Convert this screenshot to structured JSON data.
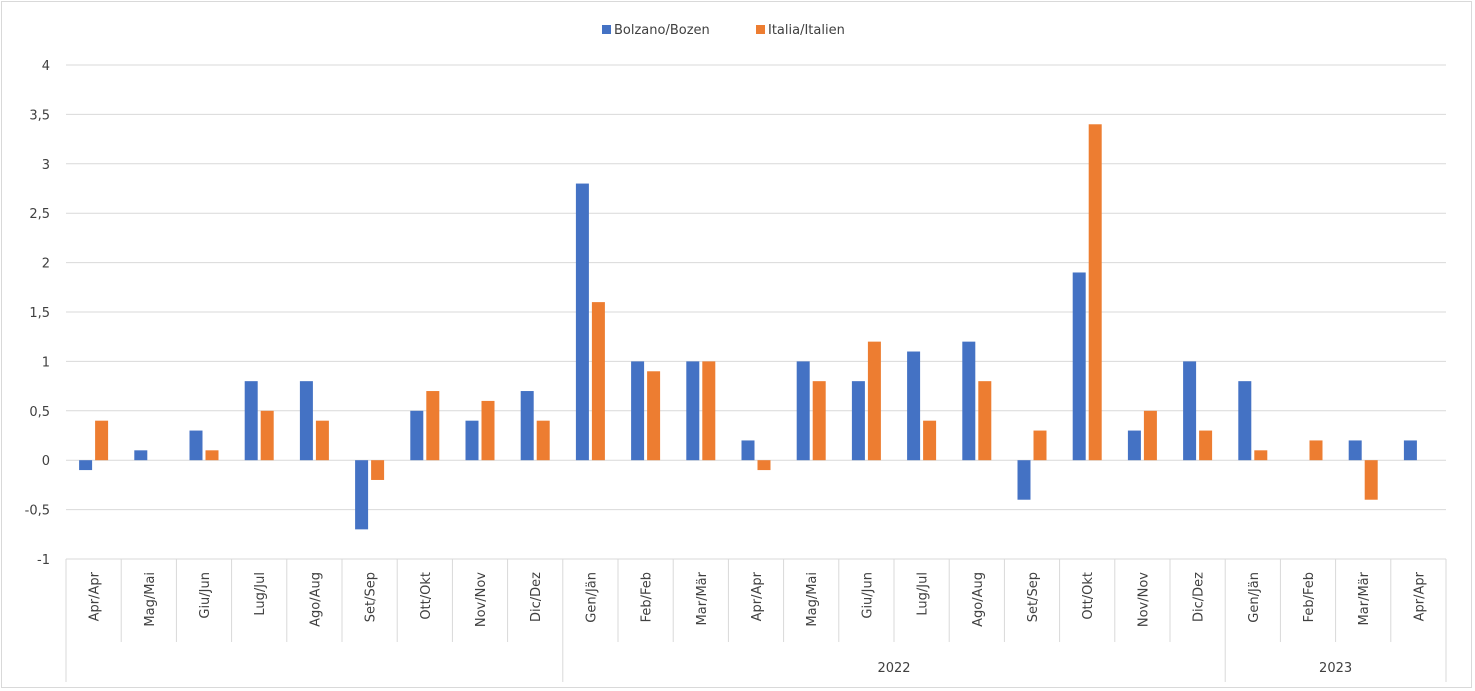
{
  "chart_data": {
    "type": "bar",
    "legend_position": "top",
    "grid": true,
    "ylim": [
      -1,
      4
    ],
    "y_ticks": [
      "-1",
      "-0,5",
      "0",
      "0,5",
      "1",
      "1,5",
      "2",
      "2,5",
      "3",
      "3,5",
      "4"
    ],
    "categories": [
      "Apr/Apr",
      "Mag/Mai",
      "Giu/Jun",
      "Lug/Jul",
      "Ago/Aug",
      "Set/Sep",
      "Ott/Okt",
      "Nov/Nov",
      "Dic/Dez",
      "Gen/Jän",
      "Feb/Feb",
      "Mar/Mär",
      "Apr/Apr",
      "Mag/Mai",
      "Giu/Jun",
      "Lug/Jul",
      "Ago/Aug",
      "Set/Sep",
      "Ott/Okt",
      "Nov/Nov",
      "Dic/Dez",
      "Gen/Jän",
      "Feb/Feb",
      "Mar/Mär",
      "Apr/Apr"
    ],
    "year_groups": [
      {
        "label": "",
        "start": 0,
        "end": 8
      },
      {
        "label": "2022",
        "start": 9,
        "end": 20
      },
      {
        "label": "2023",
        "start": 21,
        "end": 24
      }
    ],
    "series": [
      {
        "name": "Bolzano/Bozen",
        "color": "#4472c4",
        "values": [
          -0.1,
          0.1,
          0.3,
          0.8,
          0.8,
          -0.7,
          0.5,
          0.4,
          0.7,
          2.8,
          1.0,
          1.0,
          0.2,
          1.0,
          0.8,
          1.1,
          1.2,
          -0.4,
          1.9,
          0.3,
          1.0,
          0.8,
          0.0,
          0.2,
          0.2
        ]
      },
      {
        "name": "Italia/Italien",
        "color": "#ed7d31",
        "values": [
          0.4,
          0.0,
          0.1,
          0.5,
          0.4,
          -0.2,
          0.7,
          0.6,
          0.4,
          1.6,
          0.9,
          1.0,
          -0.1,
          0.8,
          1.2,
          0.4,
          0.8,
          0.3,
          3.4,
          0.5,
          0.3,
          0.1,
          0.2,
          -0.4,
          null
        ]
      }
    ]
  }
}
